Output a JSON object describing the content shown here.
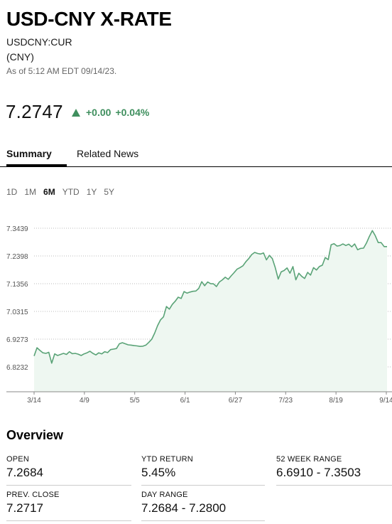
{
  "header": {
    "title": "USD-CNY X-RATE",
    "ticker": "USDCNY:CUR",
    "currency": "(CNY)",
    "as_of": "As of 5:12 AM EDT 09/14/23."
  },
  "quote": {
    "price": "7.2747",
    "change": "+0.00",
    "change_pct": "+0.04%",
    "direction_icon": "triangle-up-icon",
    "up_color": "#3f8f5e"
  },
  "tabs": [
    {
      "label": "Summary",
      "active": true
    },
    {
      "label": "Related News",
      "active": false
    }
  ],
  "ranges": [
    "1D",
    "1M",
    "6M",
    "YTD",
    "1Y",
    "5Y"
  ],
  "active_range": "6M",
  "chart_data": {
    "type": "area",
    "x_ticks": [
      "3/14",
      "4/9",
      "5/5",
      "6/1",
      "6/27",
      "7/23",
      "8/19",
      "9/14"
    ],
    "y_ticks": [
      "7.3439",
      "7.2398",
      "7.1356",
      "7.0315",
      "6.9273",
      "6.8232"
    ],
    "ylim": [
      6.8,
      7.37
    ],
    "grid": true,
    "line_color": "#5aa377",
    "fill_color": "#eef7f1",
    "series": [
      {
        "values": [
          6.864,
          6.895,
          6.885,
          6.876,
          6.874,
          6.878,
          6.837,
          6.872,
          6.866,
          6.87,
          6.874,
          6.87,
          6.88,
          6.873,
          6.874,
          6.871,
          6.866,
          6.872,
          6.876,
          6.882,
          6.874,
          6.868,
          6.876,
          6.872,
          6.88,
          6.877,
          6.888,
          6.89,
          6.892,
          6.91,
          6.914,
          6.91,
          6.906,
          6.905,
          6.903,
          6.902,
          6.9,
          6.901,
          6.905,
          6.915,
          6.927,
          6.95,
          6.978,
          7.0,
          7.011,
          7.05,
          7.04,
          7.058,
          7.07,
          7.085,
          7.08,
          7.106,
          7.1,
          7.104,
          7.107,
          7.108,
          7.118,
          7.143,
          7.128,
          7.142,
          7.136,
          7.135,
          7.125,
          7.142,
          7.15,
          7.16,
          7.152,
          7.165,
          7.177,
          7.19,
          7.196,
          7.203,
          7.218,
          7.23,
          7.245,
          7.253,
          7.249,
          7.247,
          7.251,
          7.225,
          7.242,
          7.23,
          7.196,
          7.153,
          7.18,
          7.185,
          7.195,
          7.175,
          7.2,
          7.15,
          7.175,
          7.163,
          7.155,
          7.178,
          7.168,
          7.196,
          7.187,
          7.2,
          7.205,
          7.234,
          7.226,
          7.282,
          7.286,
          7.277,
          7.279,
          7.285,
          7.279,
          7.284,
          7.274,
          7.285,
          7.263,
          7.268,
          7.269,
          7.288,
          7.313,
          7.335,
          7.316,
          7.29,
          7.29,
          7.275,
          7.275
        ]
      }
    ]
  },
  "overview": {
    "title": "Overview",
    "stats": [
      {
        "label": "OPEN",
        "value": "7.2684"
      },
      {
        "label": "YTD RETURN",
        "value": "5.45%"
      },
      {
        "label": "52 WEEK RANGE",
        "value": "6.6910 - 7.3503"
      },
      {
        "label": "PREV. CLOSE",
        "value": "7.2717"
      },
      {
        "label": "DAY RANGE",
        "value": "7.2684 - 7.2800"
      }
    ]
  }
}
